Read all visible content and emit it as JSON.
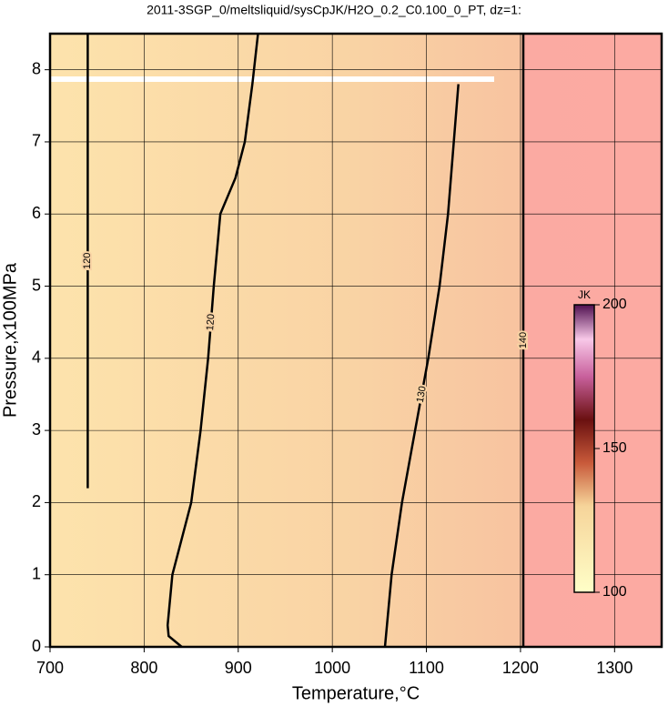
{
  "chart_data": {
    "type": "contour",
    "title": "2011-3SGP_0/meltsliquid/sysCpJK/H2O_0.2_C0.100_0_PT, dz=1:",
    "x_label": "Temperature,°C",
    "y_label": "Pressure,x100MPa",
    "xlim": [
      700,
      1350
    ],
    "ylim": [
      0,
      8.5
    ],
    "xticks": [
      700,
      800,
      900,
      1000,
      1100,
      1200,
      1300
    ],
    "yticks": [
      0,
      1,
      2,
      3,
      4,
      5,
      6,
      7,
      8
    ],
    "grid": true,
    "contours": [
      {
        "level": 120,
        "x": [
          740,
          740
        ],
        "y": [
          2.2,
          8.5
        ]
      },
      {
        "level": 120,
        "x": [
          840,
          826,
          825,
          830,
          850,
          860,
          868,
          874,
          881,
          897,
          907,
          915,
          921
        ],
        "y": [
          0,
          0.15,
          0.3,
          1,
          2,
          3,
          4,
          5,
          6,
          6.5,
          7,
          7.8,
          8.5
        ]
      },
      {
        "level": 130,
        "x": [
          1056,
          1063,
          1074,
          1088,
          1102,
          1114,
          1123,
          1134
        ],
        "y": [
          0,
          1,
          2,
          3,
          4,
          5,
          6,
          7.8
        ]
      },
      {
        "level": 140,
        "x": [
          1203,
          1203
        ],
        "y": [
          0,
          8.5
        ]
      }
    ],
    "colorbar": {
      "label": "JK",
      "clim": [
        100,
        200
      ],
      "ticks": [
        100,
        150,
        200
      ]
    }
  }
}
